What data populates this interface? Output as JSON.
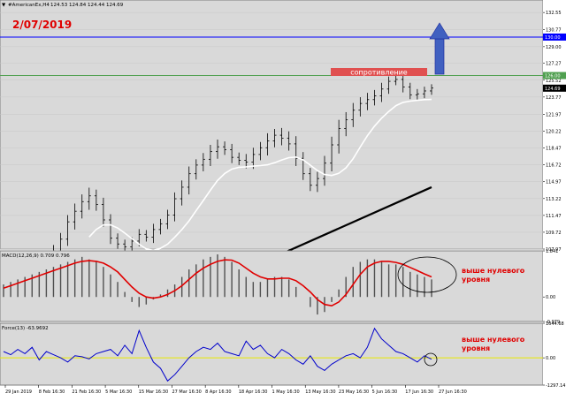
{
  "header": {
    "symbol_label": "#AmericanEx,H4",
    "ohlc": "124.53 124.84 124.44 124.69",
    "date_stamp": "2/07/2019"
  },
  "colors": {
    "panel_bg": "#d9d9d9",
    "date_red": "#e00000",
    "resistance": "#e05050",
    "arrow": "#4060c0",
    "macd_signal": "#e00000",
    "force": "#0000cc",
    "zero_yellow": "#e8e800",
    "annotation_red": "#e00000",
    "blue_level": "#0000ff",
    "green_level": "#50a050"
  },
  "annotations": {
    "resistance_label": "сопротивление",
    "macd_note_1": "выше нулевого",
    "macd_note_2": "уровня",
    "force_note_1": "выше нулевого",
    "force_note_2": "уровня"
  },
  "chart_data": [
    {
      "type": "line",
      "panel": "price",
      "price_axis_ticks": [
        "132.55",
        "130.77",
        "129.00",
        "127.27",
        "125.52",
        "123.77",
        "121.97",
        "120.22",
        "118.47",
        "116.72",
        "114.97",
        "113.22",
        "111.47",
        "109.72",
        "107.97"
      ],
      "ylim": [
        107.97,
        133.3
      ],
      "levels": {
        "blue": "130.00",
        "green": "126.00",
        "current": "124.69"
      },
      "ma_slow_from": [
        55,
        105.5
      ],
      "ma_slow_to": [
        100,
        114.4
      ],
      "ma_fast_from": [
        10,
        104.5
      ],
      "ma_fast_to": [
        103,
        124.0
      ],
      "close": [
        104.9,
        105.4,
        105.0,
        106.3,
        106.6,
        106.8,
        107.1,
        107.8,
        109.0,
        110.8,
        111.9,
        112.9,
        113.5,
        112.6,
        111.0,
        109.1,
        108.5,
        108.2,
        108.8,
        109.5,
        109.2,
        110.0,
        110.6,
        111.5,
        113.2,
        114.4,
        115.8,
        116.7,
        117.3,
        118.1,
        118.6,
        118.3,
        117.5,
        117.2,
        117.0,
        117.8,
        118.5,
        119.2,
        119.8,
        119.5,
        118.9,
        117.4,
        115.8,
        114.6,
        115.3,
        116.9,
        118.8,
        120.5,
        121.4,
        122.4,
        123.1,
        123.5,
        123.9,
        124.6,
        125.4,
        125.6,
        124.8,
        124.0,
        124.1,
        124.4,
        124.7
      ],
      "range": [
        0.7,
        0.5,
        0.9,
        0.8,
        1.1,
        1.0,
        0.8,
        1.2,
        1.3,
        1.4,
        1.6,
        1.5,
        1.7,
        1.3,
        1.4,
        1.2,
        1.0,
        0.9,
        0.8,
        1.1,
        0.9,
        1.2,
        1.0,
        1.1,
        1.3,
        1.4,
        1.5,
        1.2,
        1.3,
        1.4,
        1.5,
        1.1,
        1.2,
        1.0,
        1.3,
        1.4,
        1.2,
        1.6,
        1.3,
        1.5,
        1.4,
        1.6,
        1.3,
        1.2,
        1.4,
        1.5,
        1.7,
        1.8,
        1.6,
        1.5,
        1.3,
        1.4,
        1.2,
        1.3,
        1.0,
        0.8,
        1.1,
        0.9,
        1.0,
        0.9,
        0.8
      ]
    },
    {
      "type": "bar",
      "panel": "macd",
      "label": "MACD(12,26,9) 0.709 0.796",
      "axis_ticks": [
        "1.841",
        "0.00",
        "-0.979"
      ],
      "ylim": [
        -0.979,
        1.841
      ],
      "histogram": [
        0.5,
        0.6,
        0.7,
        0.8,
        0.9,
        1.0,
        1.1,
        1.2,
        1.3,
        1.4,
        1.5,
        1.6,
        1.5,
        1.4,
        1.2,
        0.9,
        0.6,
        0.2,
        -0.2,
        -0.4,
        -0.3,
        -0.1,
        0.1,
        0.3,
        0.5,
        0.8,
        1.1,
        1.3,
        1.5,
        1.6,
        1.7,
        1.6,
        1.4,
        1.1,
        0.8,
        0.6,
        0.6,
        0.7,
        0.8,
        0.8,
        0.7,
        0.4,
        0.0,
        -0.4,
        -0.7,
        -0.6,
        -0.2,
        0.3,
        0.8,
        1.2,
        1.4,
        1.5,
        1.5,
        1.4,
        1.3,
        1.3,
        1.2,
        1.0,
        0.9,
        0.8,
        0.7
      ],
      "signal": [
        0.35,
        0.45,
        0.55,
        0.65,
        0.75,
        0.85,
        0.95,
        1.05,
        1.15,
        1.25,
        1.35,
        1.42,
        1.45,
        1.42,
        1.35,
        1.2,
        1.0,
        0.7,
        0.4,
        0.15,
        0.0,
        -0.05,
        0.0,
        0.1,
        0.25,
        0.45,
        0.7,
        0.95,
        1.15,
        1.3,
        1.42,
        1.48,
        1.47,
        1.35,
        1.15,
        0.95,
        0.8,
        0.72,
        0.72,
        0.75,
        0.75,
        0.65,
        0.45,
        0.2,
        -0.1,
        -0.3,
        -0.35,
        -0.2,
        0.1,
        0.5,
        0.9,
        1.2,
        1.35,
        1.42,
        1.42,
        1.38,
        1.3,
        1.18,
        1.05,
        0.92,
        0.8
      ]
    },
    {
      "type": "line",
      "panel": "force",
      "label": "Force(13) -63.9692",
      "axis_ticks": [
        "1644.68",
        "0.00",
        "-1297.14"
      ],
      "ylim": [
        -1297.14,
        1644.68
      ],
      "values": [
        300,
        150,
        400,
        200,
        500,
        -100,
        300,
        150,
        0,
        -200,
        100,
        50,
        -50,
        200,
        300,
        400,
        100,
        600,
        200,
        1300,
        500,
        -200,
        -500,
        -1100,
        -800,
        -400,
        0,
        300,
        500,
        400,
        700,
        300,
        200,
        100,
        800,
        400,
        600,
        200,
        0,
        400,
        200,
        -100,
        -300,
        100,
        -400,
        -600,
        -300,
        -100,
        100,
        200,
        0,
        500,
        1400,
        900,
        600,
        300,
        200,
        0,
        -200,
        100,
        -63.97
      ]
    },
    {
      "type": "table",
      "panel": "time_axis",
      "tick_labels": [
        "29 Jan 2019",
        "8 Feb 16:30",
        "21 Feb 16:30",
        "5 Mar 16:30",
        "15 Mar 16:30",
        "27 Mar 16:30",
        "8 Apr 16:30",
        "18 Apr 16:30",
        "1 May 16:30",
        "13 May 16:30",
        "23 May 16:30",
        "5 Jun 16:30",
        "17 Jun 16:30",
        "27 Jun 16:30"
      ]
    }
  ]
}
